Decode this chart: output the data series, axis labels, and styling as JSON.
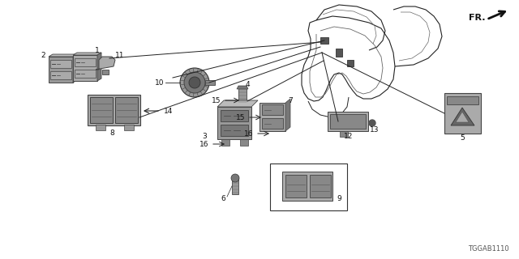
{
  "bg_color": "#ffffff",
  "fig_width": 6.4,
  "fig_height": 3.2,
  "dpi": 100,
  "watermark": "TGGAB1110",
  "fr_label": "FR.",
  "part_color": "#888888",
  "part_dark": "#444444",
  "part_light": "#cccccc",
  "line_color": "#222222",
  "label_color": "#111111",
  "label_fontsize": 6.5
}
